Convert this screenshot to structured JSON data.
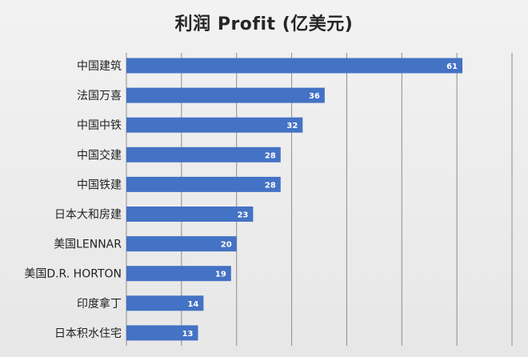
{
  "chart_data": {
    "type": "bar",
    "orientation": "horizontal",
    "title": "利润 Profit (亿美元)",
    "categories": [
      "中国建筑",
      "法国万喜",
      "中国中铁",
      "中国交建",
      "中国铁建",
      "日本大和房建",
      "美国LENNAR",
      "美国D.R. HORTON",
      "印度拿丁",
      "日本积水住宅"
    ],
    "values": [
      61,
      36,
      32,
      28,
      28,
      23,
      20,
      19,
      14,
      13
    ],
    "xlim": [
      0,
      70
    ],
    "grid": true,
    "legend": "none",
    "bar_color": "#4472c4",
    "data_labels": true
  }
}
